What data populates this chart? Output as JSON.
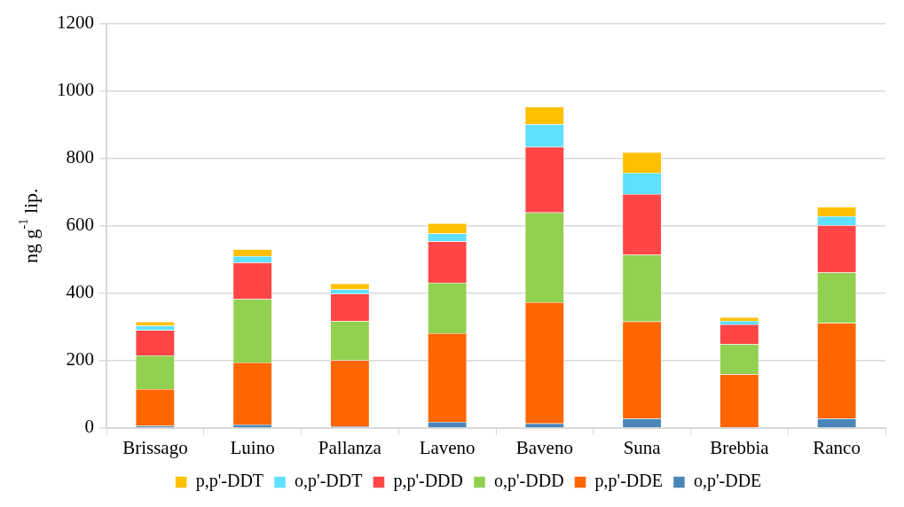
{
  "chart_data": {
    "type": "bar",
    "ylabel": "ng g$^{-1}$ lip.",
    "categories": [
      "Brissago",
      "Luino",
      "Pallanza",
      "Laveno",
      "Baveno",
      "Suna",
      "Brebbia",
      "Ranco"
    ],
    "series": [
      {
        "name": "o,p'-DDE",
        "color": "#4a86b8",
        "values": [
          6,
          10,
          5,
          18,
          13,
          28,
          2,
          28
        ]
      },
      {
        "name": "p,p'-DDE",
        "color": "#ff6600",
        "values": [
          109,
          184,
          196,
          263,
          360,
          288,
          157,
          283
        ]
      },
      {
        "name": "o,p'-DDD",
        "color": "#92d050",
        "values": [
          100,
          188,
          116,
          150,
          266,
          198,
          90,
          150
        ]
      },
      {
        "name": "p,p'-DDD",
        "color": "#ff4545",
        "values": [
          75,
          109,
          81,
          123,
          195,
          180,
          58,
          140
        ]
      },
      {
        "name": "o,p'-DDT",
        "color": "#5fe0ff",
        "values": [
          13,
          19,
          13,
          23,
          67,
          63,
          11,
          27
        ]
      },
      {
        "name": "p,p'-DDT",
        "color": "#ffc000",
        "values": [
          12,
          20,
          17,
          30,
          52,
          61,
          10,
          28
        ]
      }
    ],
    "stacked": true,
    "ylim": [
      0,
      1200
    ],
    "yticks": [
      0,
      200,
      400,
      600,
      800,
      1000,
      1200
    ],
    "grid": "y",
    "legend": "bottom"
  }
}
